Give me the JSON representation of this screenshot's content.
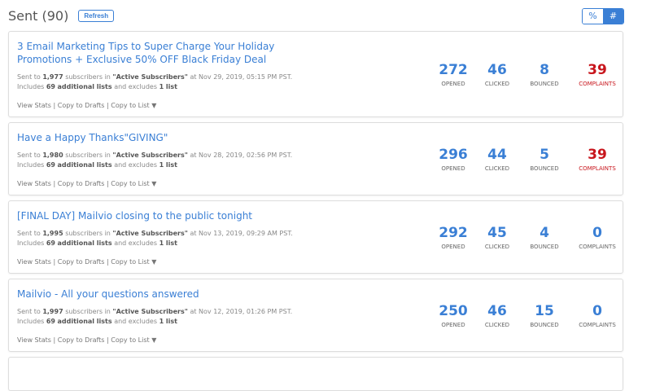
{
  "header": {
    "title": "Sent (90)",
    "refresh_label": "Refresh",
    "toggle": [
      "%",
      "#"
    ],
    "toggle_selected": "#"
  },
  "labels": {
    "opened": "OPENED",
    "clicked": "CLICKED",
    "bounced": "BOUNCED",
    "complaints": "COMPLAINTS",
    "view_stats": "View Stats",
    "copy_drafts": "Copy to Drafts",
    "copy_list": "Copy to List",
    "sent_to": "Sent to",
    "subs_in": "subscribers in",
    "includes": "Includes",
    "add_lists": "additional lists",
    "and_excl": "and excludes",
    "one_list": "1 list"
  },
  "campaigns": [
    {
      "subject": "3 Email Marketing Tips to Super Charge Your Holiday Promotions + Exclusive 50% OFF Black Friday Deal",
      "count": "1,977",
      "list": "\"Active Subscribers\"",
      "date": "at Nov 29, 2019, 05:15 PM PST.",
      "included": "69",
      "opened": "272",
      "clicked": "46",
      "bounced": "8",
      "complaints": "39"
    },
    {
      "subject": "Have a Happy Thanks\"GIVING\"",
      "count": "1,980",
      "list": "\"Active Subscribers\"",
      "date": "at Nov 28, 2019, 02:56 PM PST.",
      "included": "69",
      "opened": "296",
      "clicked": "44",
      "bounced": "5",
      "complaints": "39"
    },
    {
      "subject": "[FINAL DAY] Mailvio closing to the public tonight",
      "count": "1,995",
      "list": "\"Active Subscribers\"",
      "date": "at Nov 13, 2019, 09:29 AM PST.",
      "included": "69",
      "opened": "292",
      "clicked": "45",
      "bounced": "4",
      "complaints": "0"
    },
    {
      "subject": "Mailvio - All your questions answered",
      "count": "1,997",
      "list": "\"Active Subscribers\"",
      "date": "at Nov 12, 2019, 01:26 PM PST.",
      "included": "69",
      "opened": "250",
      "clicked": "46",
      "bounced": "15",
      "complaints": "0"
    }
  ],
  "colors": {
    "accent": "#3a7fd5",
    "complaints_alert": "#c8161d"
  }
}
